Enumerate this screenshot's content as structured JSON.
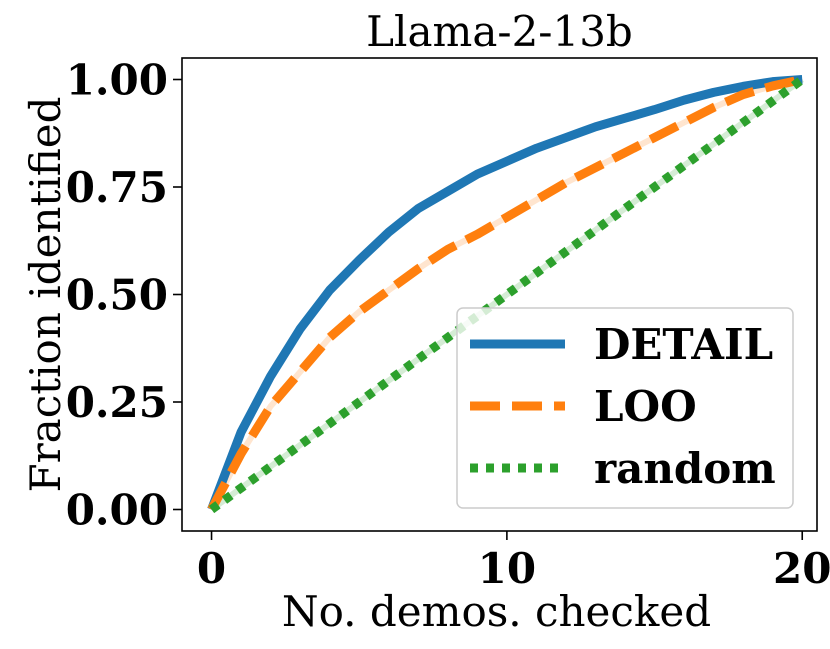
{
  "chart_data": {
    "type": "line",
    "title": "Llama-2-13b",
    "xlabel": "No. demos. checked",
    "ylabel": "Fraction identified",
    "xlim": [
      -1,
      20.5
    ],
    "ylim": [
      -0.05,
      1.05
    ],
    "xticks": [
      0,
      10,
      20
    ],
    "xtick_labels": [
      "0",
      "10",
      "20"
    ],
    "yticks": [
      0.0,
      0.25,
      0.5,
      0.75,
      1.0
    ],
    "ytick_labels": [
      "0.00",
      "0.25",
      "0.50",
      "0.75",
      "1.00"
    ],
    "grid": false,
    "legend_position": "lower-right",
    "series": [
      {
        "name": "DETAIL",
        "color": "#1f77b4",
        "style": "solid",
        "x": [
          0,
          1,
          2,
          3,
          4,
          5,
          6,
          7,
          8,
          9,
          10,
          11,
          12,
          13,
          14,
          15,
          16,
          17,
          18,
          19,
          20
        ],
        "values": [
          0.0,
          0.18,
          0.31,
          0.42,
          0.51,
          0.58,
          0.645,
          0.7,
          0.74,
          0.78,
          0.81,
          0.84,
          0.865,
          0.89,
          0.91,
          0.93,
          0.952,
          0.97,
          0.984,
          0.995,
          1.0
        ]
      },
      {
        "name": "LOO",
        "color": "#ff7f0e",
        "style": "dashed",
        "x": [
          0,
          1,
          2,
          3,
          4,
          5,
          6,
          7,
          8,
          9,
          10,
          11,
          12,
          13,
          14,
          15,
          16,
          17,
          18,
          19,
          20
        ],
        "values": [
          0.0,
          0.13,
          0.24,
          0.32,
          0.4,
          0.46,
          0.51,
          0.56,
          0.605,
          0.64,
          0.68,
          0.72,
          0.76,
          0.795,
          0.83,
          0.865,
          0.9,
          0.935,
          0.965,
          0.985,
          1.0
        ]
      },
      {
        "name": "random",
        "color": "#2ca02c",
        "style": "dotted",
        "x": [
          0,
          1,
          2,
          3,
          4,
          5,
          6,
          7,
          8,
          9,
          10,
          11,
          12,
          13,
          14,
          15,
          16,
          17,
          18,
          19,
          20
        ],
        "values": [
          0.0,
          0.05,
          0.1,
          0.15,
          0.2,
          0.25,
          0.3,
          0.35,
          0.4,
          0.45,
          0.5,
          0.55,
          0.6,
          0.65,
          0.7,
          0.75,
          0.8,
          0.85,
          0.9,
          0.95,
          1.0
        ]
      }
    ]
  }
}
